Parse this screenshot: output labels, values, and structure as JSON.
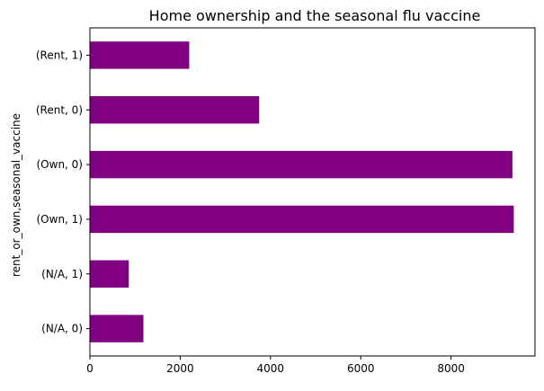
{
  "chart_data": {
    "type": "bar",
    "orientation": "horizontal",
    "title": "Home ownership and the seasonal flu vaccine",
    "xlabel": "",
    "ylabel": "rent_or_own,seasonal_vaccine",
    "categories": [
      "(N/A, 0)",
      "(N/A, 1)",
      "(Own, 1)",
      "(Own, 0)",
      "(Rent, 0)",
      "(Rent, 1)"
    ],
    "values": [
      1185,
      860,
      9390,
      9360,
      3750,
      2200
    ],
    "xlim": [
      0,
      9860
    ],
    "xticks": [
      0,
      2000,
      4000,
      6000,
      8000
    ],
    "bar_color": "#800080",
    "grid": false,
    "legend": "none"
  }
}
